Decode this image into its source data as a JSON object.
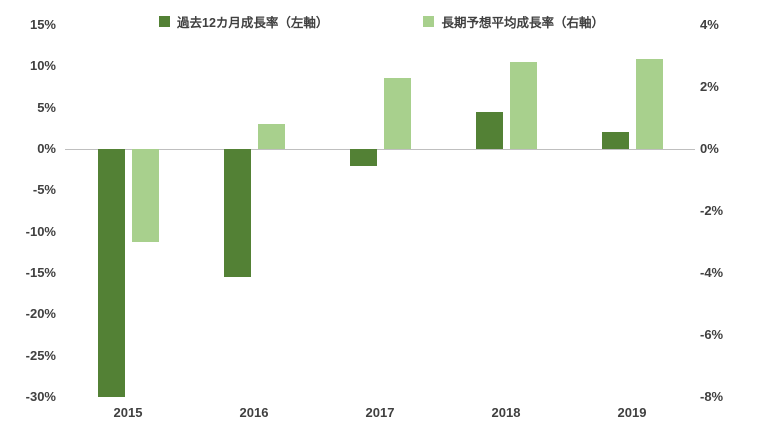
{
  "legend": {
    "series1_label": "過去12カ月成長率（左軸）",
    "series2_label": "長期予想平均成長率（右軸）"
  },
  "colors": {
    "dark_green": "#538135",
    "light_green": "#a8d08d",
    "axis_text": "#404040",
    "zero_line": "#bfbfbf"
  },
  "chart_data": {
    "type": "bar",
    "categories": [
      "2015",
      "2016",
      "2017",
      "2018",
      "2019"
    ],
    "series": [
      {
        "name": "過去12カ月成長率（左軸）",
        "axis": "left",
        "color": "#538135",
        "values": [
          -30,
          -15.5,
          -2,
          4.5,
          2
        ]
      },
      {
        "name": "長期予想平均成長率（右軸）",
        "axis": "right",
        "color": "#a8d08d",
        "values": [
          -3,
          0.8,
          2.3,
          2.8,
          2.9
        ]
      }
    ],
    "left_axis": {
      "min": -30,
      "max": 15,
      "tick_step": 5,
      "ticks": [
        "15%",
        "10%",
        "5%",
        "0%",
        "-5%",
        "-10%",
        "-15%",
        "-20%",
        "-25%",
        "-30%"
      ]
    },
    "right_axis": {
      "min": -8,
      "max": 4,
      "tick_step": 2,
      "ticks": [
        "4%",
        "2%",
        "0%",
        "-2%",
        "-4%",
        "-6%",
        "-8%"
      ]
    },
    "grid": false,
    "legend_position": "top"
  }
}
